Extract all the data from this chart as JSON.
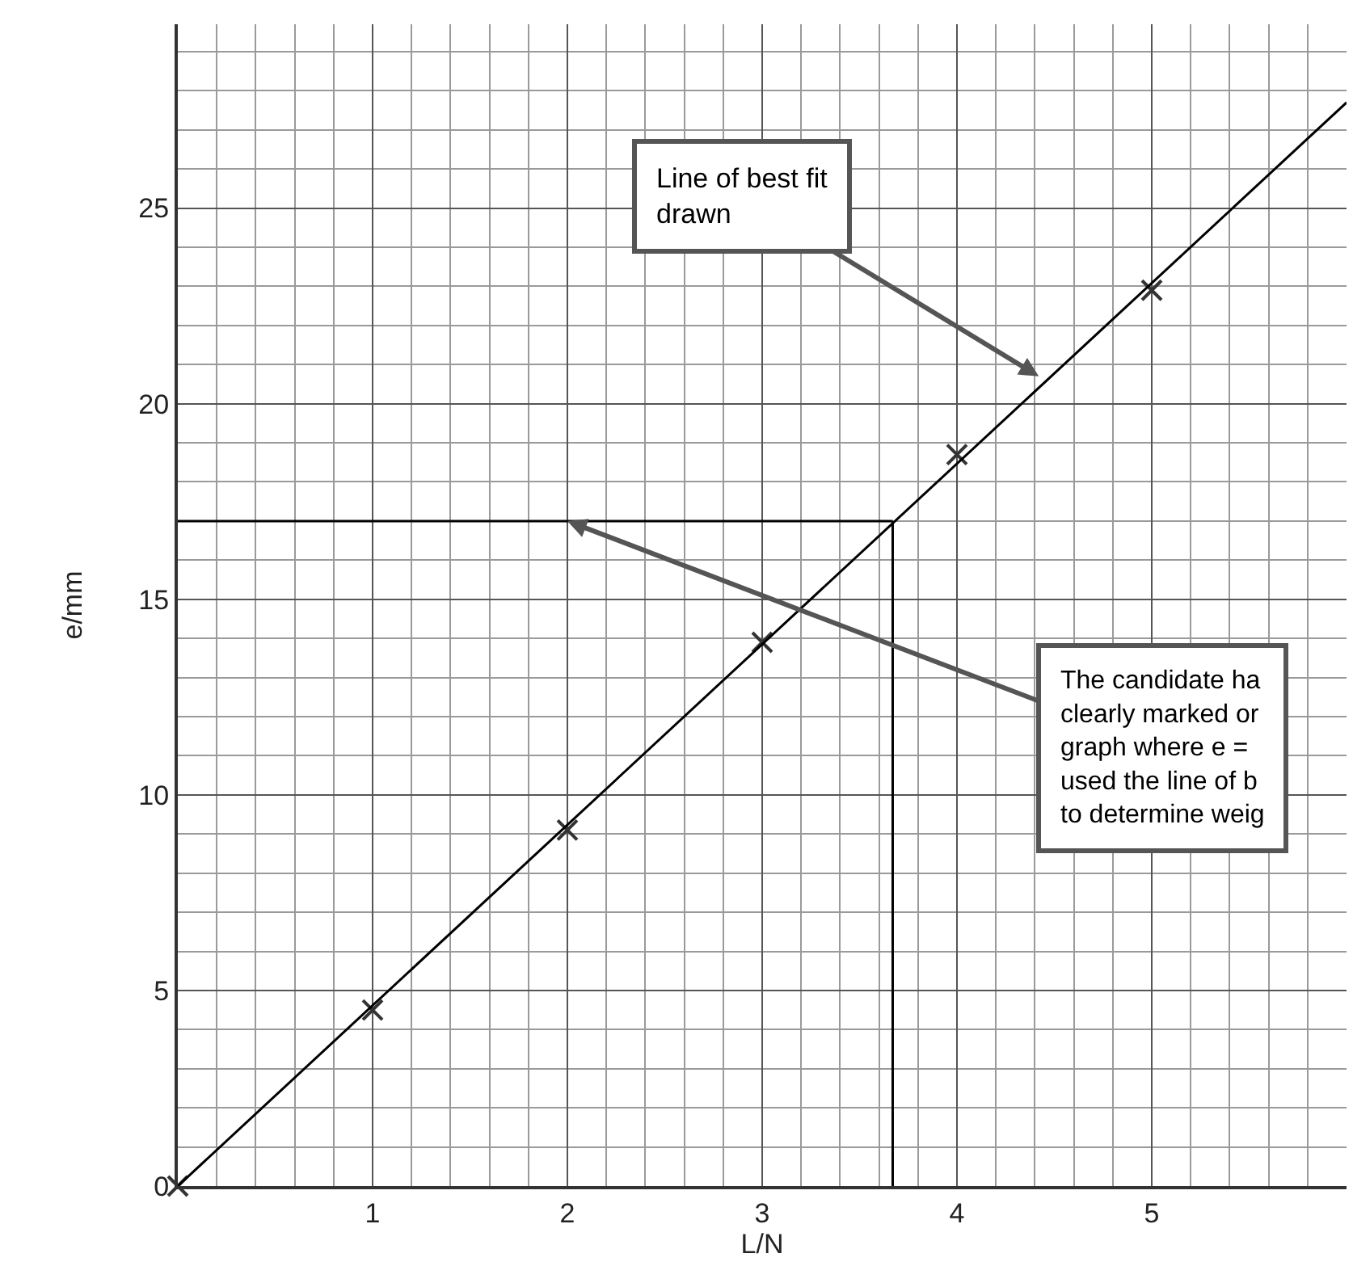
{
  "chart_data": {
    "type": "scatter",
    "xlabel": "L/N",
    "ylabel": "e/mm",
    "xlim": [
      0,
      6.0
    ],
    "ylim": [
      0,
      29.7
    ],
    "xticks": [
      1,
      2,
      3,
      4,
      5
    ],
    "yticks": [
      0,
      5,
      10,
      15,
      20,
      25
    ],
    "grid": true,
    "marker": "cross",
    "x": [
      0,
      1,
      2,
      3,
      4,
      5
    ],
    "series": [
      {
        "color": "#333333",
        "values": [
          0,
          4.5,
          9.1,
          13.9,
          18.7,
          22.9
        ]
      },
      {
        "type": "line",
        "color": "#000000",
        "x": [
          0,
          6.0
        ],
        "values": [
          0,
          27.7
        ],
        "marker": "none",
        "line_style": "solid"
      }
    ],
    "ref_lines": [
      {
        "axis": "y",
        "value": 17,
        "color": "#000000"
      },
      {
        "axis": "x",
        "value": 3.67,
        "color": "#000000"
      }
    ],
    "annotations": [
      {
        "text": "Line of best fit\ndrawn",
        "x": 4.42,
        "y": 20.7
      },
      {
        "text": "The candidate ha\nclearly marked or\ngraph where e =\nused the line of b\nto determine weig",
        "x": 2.0,
        "y": 17
      }
    ]
  }
}
